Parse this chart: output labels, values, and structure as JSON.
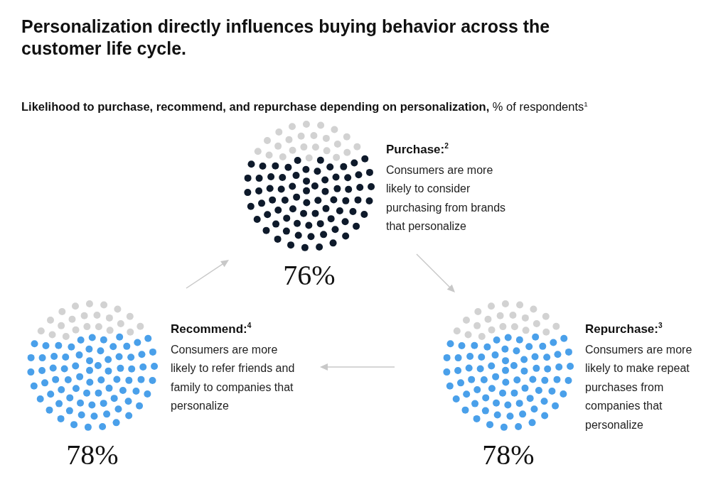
{
  "chart_data": [
    {
      "type": "other",
      "title": "Personalization directly influences buying behavior across the customer life cycle.",
      "subtitle": "Likelihood to purchase, recommend, and repurchase depending on personalization, % of respondents$^{1}$"
    },
    {
      "type": "other",
      "title": "Purchase:$^{2}$",
      "subtitle": "Consumers are more likely to consider purchasing from brands that personalize",
      "values": [
        76
      ],
      "value_labels": [
        "76%"
      ],
      "color": "#0e1a2b"
    },
    {
      "type": "other",
      "title": "Recommend:$^{4}$",
      "subtitle": "Consumers are more likely to refer friends and family to companies that personalize",
      "values": [
        78
      ],
      "value_labels": [
        "78%"
      ],
      "color": "#4aa0ea"
    },
    {
      "type": "other",
      "title": "Repurchase:$^{3}$",
      "subtitle": "Consumers are more likely to make repeat purchases from companies that personalize",
      "values": [
        78
      ],
      "value_labels": [
        "78%"
      ],
      "color": "#4aa0ea"
    }
  ]
}
